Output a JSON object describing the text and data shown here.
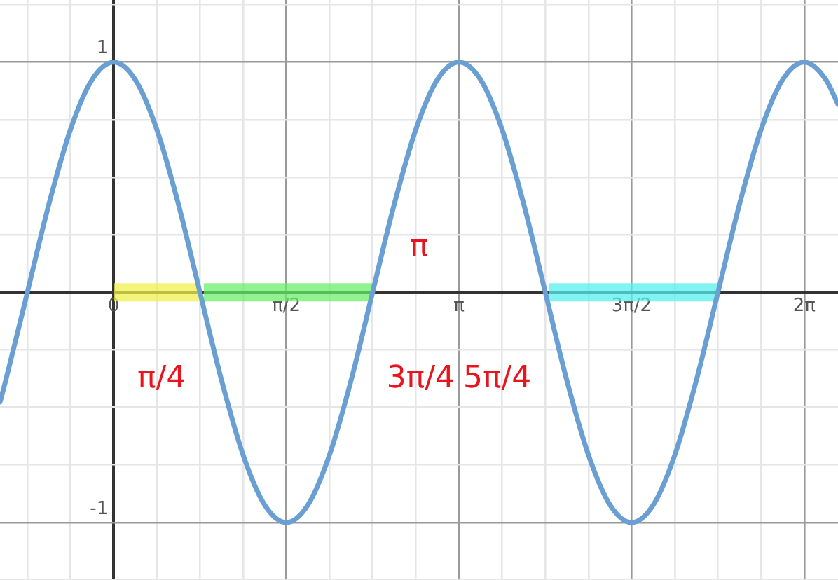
{
  "chart_data": {
    "type": "line",
    "xlim": [
      -1.034,
      6.59
    ],
    "ylim": [
      -1.25,
      1.27
    ],
    "xticks": [
      {
        "value": -0.785,
        "label": null
      },
      {
        "value": -0.393,
        "label": null
      },
      {
        "value": 0,
        "label": "0"
      },
      {
        "value": 0.393,
        "label": null
      },
      {
        "value": 0.785,
        "label": null
      },
      {
        "value": 1.178,
        "label": null
      },
      {
        "value": 1.571,
        "label": "π/2"
      },
      {
        "value": 1.963,
        "label": null
      },
      {
        "value": 2.356,
        "label": null
      },
      {
        "value": 2.749,
        "label": null
      },
      {
        "value": 3.142,
        "label": "π"
      },
      {
        "value": 3.534,
        "label": null
      },
      {
        "value": 3.927,
        "label": null
      },
      {
        "value": 4.32,
        "label": null
      },
      {
        "value": 4.712,
        "label": "3π/2"
      },
      {
        "value": 5.105,
        "label": null
      },
      {
        "value": 5.498,
        "label": null
      },
      {
        "value": 5.89,
        "label": null
      },
      {
        "value": 6.283,
        "label": "2π"
      }
    ],
    "yticks": [
      {
        "value": -1.25,
        "label": null
      },
      -1,
      {
        "value": -0.75,
        "label": null
      },
      {
        "value": -0.5,
        "label": null
      },
      {
        "value": -0.25,
        "label": null
      },
      {
        "value": 0,
        "label": null
      },
      {
        "value": 0.25,
        "label": null
      },
      {
        "value": 0.5,
        "label": null
      },
      {
        "value": 0.75,
        "label": null
      },
      1,
      {
        "value": 1.25,
        "label": null
      }
    ],
    "grid": true,
    "legend": false,
    "marker": "none",
    "line_style": "solid",
    "series": [
      {
        "color": "#f0f04a",
        "x": [
          0,
          0.785
        ],
        "values": [
          0,
          0
        ]
      },
      {
        "color": "#66ee66",
        "x": [
          0.82,
          2.36
        ],
        "values": [
          0,
          0
        ]
      },
      {
        "color": "#55eeee",
        "x": [
          3.96,
          5.5
        ],
        "values": [
          0,
          0
        ]
      },
      {
        "color": "#6a9fd4",
        "x": [
          -1.034,
          -0.982,
          -0.785,
          -0.589,
          -0.393,
          -0.196,
          0,
          0.196,
          0.393,
          0.589,
          0.785,
          0.982,
          1.178,
          1.374,
          1.571,
          1.767,
          1.963,
          2.16,
          2.356,
          2.553,
          2.749,
          2.945,
          3.142,
          3.338,
          3.534,
          3.731,
          3.927,
          4.123,
          4.32,
          4.516,
          4.712,
          4.909,
          5.105,
          5.301,
          5.498,
          5.694,
          5.89,
          6.087,
          6.283,
          6.48,
          6.59
        ],
        "values": [
          -0.477,
          -0.383,
          0,
          0.383,
          0.707,
          0.924,
          1,
          0.924,
          0.707,
          0.383,
          0,
          -0.383,
          -0.707,
          -0.924,
          -1,
          -0.924,
          -0.707,
          -0.383,
          0,
          0.383,
          0.707,
          0.924,
          1,
          0.924,
          0.707,
          0.383,
          0,
          -0.383,
          -0.707,
          -0.924,
          -1,
          -0.924,
          -0.707,
          -0.383,
          0,
          0.383,
          0.707,
          0.924,
          1,
          0.924,
          0.817
        ]
      }
    ],
    "annotations": [
      {
        "text": "π/4",
        "x": 0.785,
        "y": 0
      },
      {
        "text": "3π/4",
        "x": 2.356,
        "y": 0
      },
      "π",
      {
        "text": "5π/4",
        "x": 3.927,
        "y": 0
      }
    ]
  }
}
